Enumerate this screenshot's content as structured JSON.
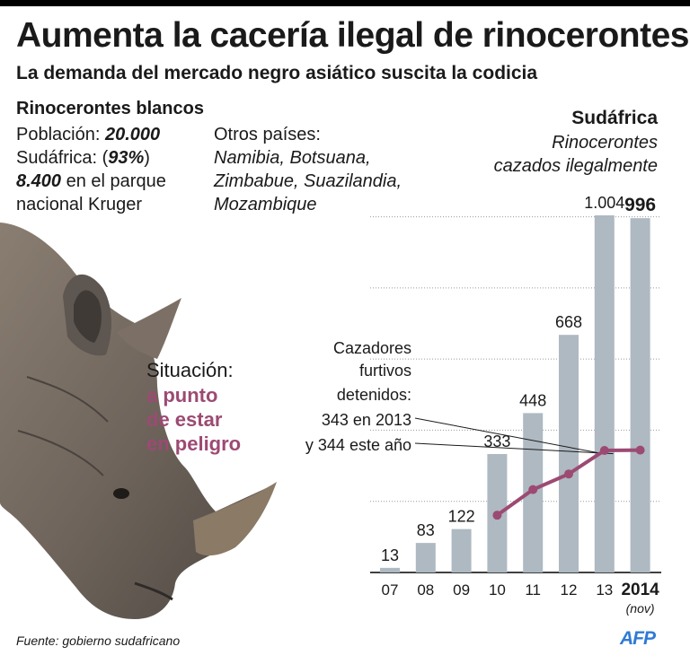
{
  "header": {
    "title": "Aumenta la cacería ilegal de rinocerontes",
    "subtitle": "La demanda del mercado negro asiático suscita la codicia"
  },
  "info": {
    "heading": "Rinocerontes blancos",
    "population_label": "Población:",
    "population_value": "20.000",
    "south_africa_label": "Sudáfrica: (",
    "south_africa_value": "93%",
    "south_africa_close": ")",
    "kruger_value": "8.400",
    "kruger_text_1": " en el parque",
    "kruger_text_2": "nacional Kruger",
    "other_label": "Otros países:",
    "other_line_1": "Namibia, Botsuana,",
    "other_line_2": "Zimbabue, Suazilandia,",
    "other_line_3": "Mozambique"
  },
  "status": {
    "label": "Situación:",
    "line_1": "a punto",
    "line_2": "de estar",
    "line_3": "en peligro"
  },
  "footer": {
    "source": "Fuente: gobierno sudafricano",
    "logo": "AFP"
  },
  "colors": {
    "bar": "#aeb9c2",
    "line": "#9c4a73",
    "grid": "#9a9a9a",
    "status": "#9c4a73"
  },
  "chart_data": {
    "type": "bar",
    "title": "Sudáfrica",
    "subtitle_1": "Rinocerontes",
    "subtitle_2": "cazados ilegalmente",
    "categories": [
      "07",
      "08",
      "09",
      "10",
      "11",
      "12",
      "13",
      "2014"
    ],
    "category_note": "(nov)",
    "values": [
      13,
      83,
      122,
      333,
      448,
      668,
      1004,
      996
    ],
    "value_labels": [
      "13",
      "83",
      "122",
      "333",
      "448",
      "668",
      "1.004",
      "996"
    ],
    "ylim": [
      0,
      1004
    ],
    "grid": true,
    "line_series": {
      "label_1": "Cazadores",
      "label_2": "furtivos",
      "label_3": "detenidos:",
      "label_4": "343 en 2013",
      "label_5": "y 344 este año",
      "start_category": "10",
      "values": [
        161,
        233,
        277,
        343,
        344
      ]
    }
  }
}
